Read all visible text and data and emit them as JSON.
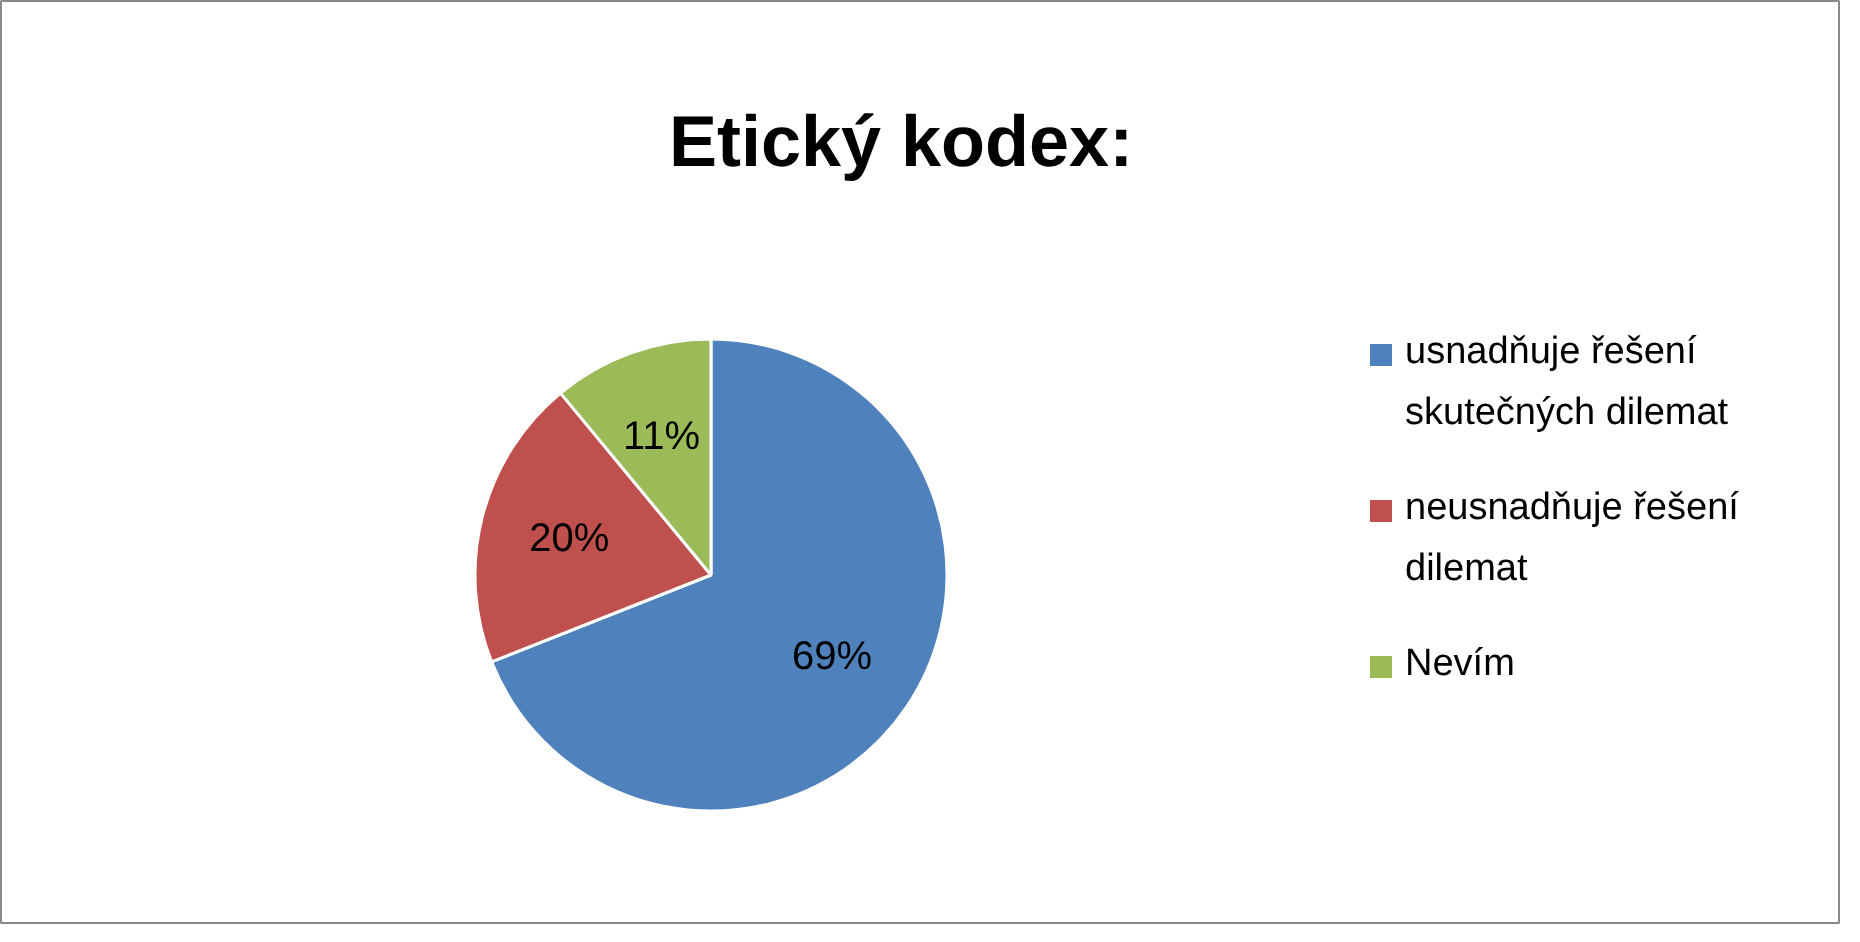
{
  "chart_data": {
    "type": "pie",
    "title": "Etický kodex:",
    "categories": [
      "usnadňuje řešení skutečných dilemat",
      "neusnadňuje řešení dilemat",
      "Nevím"
    ],
    "values": [
      69,
      20,
      11
    ],
    "colors": [
      "#4f81bd",
      "#c0504d",
      "#9bbb59"
    ],
    "value_labels": [
      "69%",
      "20%",
      "11%"
    ],
    "legend": "right"
  }
}
